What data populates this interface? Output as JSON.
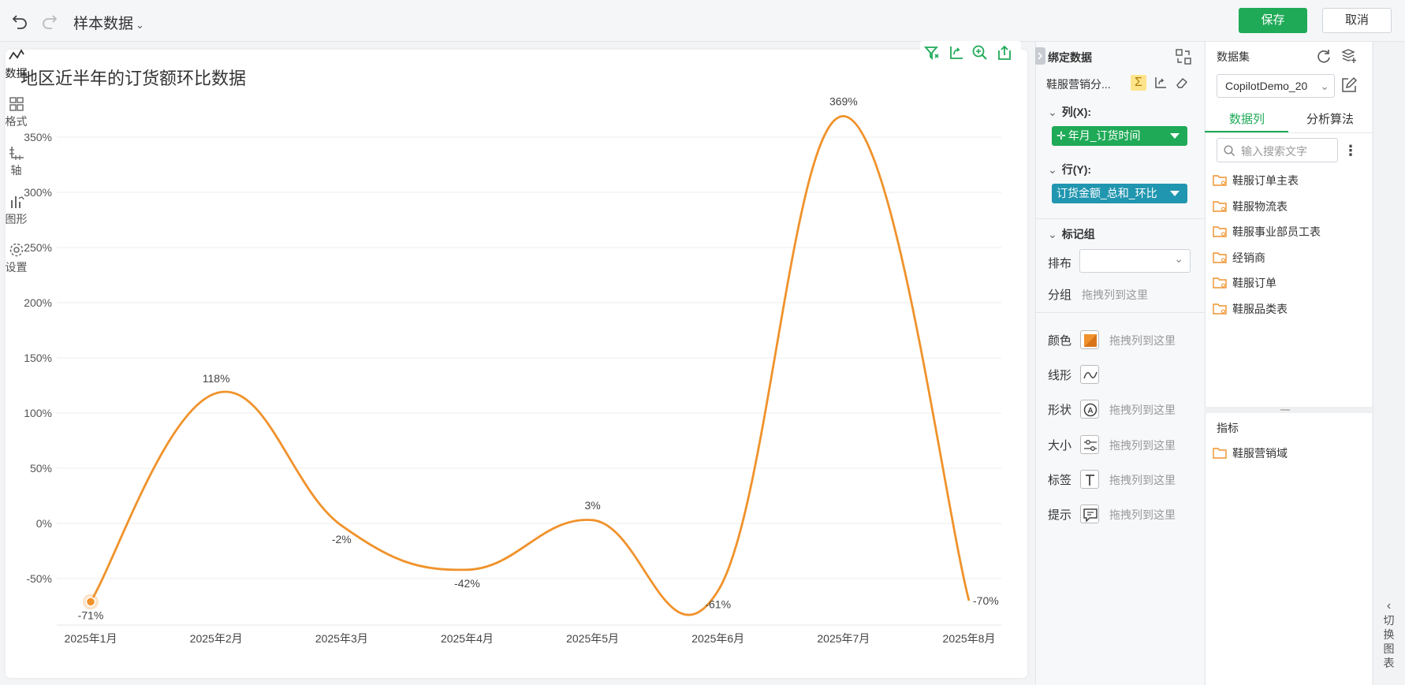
{
  "toolbar": {
    "undo_icon": "undo-icon",
    "redo_icon": "redo-icon",
    "dataset_name": "样本数据",
    "save_label": "保存",
    "cancel_label": "取消"
  },
  "chart_tools": [
    "filter-icon",
    "swap-axes-icon",
    "zoom-icon",
    "export-icon"
  ],
  "chart_data": {
    "type": "line",
    "title": "地区近半年的订货额环比数据",
    "categories": [
      "2025年1月",
      "2025年2月",
      "2025年3月",
      "2025年4月",
      "2025年5月",
      "2025年6月",
      "2025年7月",
      "2025年8月"
    ],
    "series": [
      {
        "values": [
          -71,
          118,
          -2,
          -42,
          3,
          -61,
          369,
          -70
        ],
        "labels": [
          "-71%",
          "118%",
          "-2%",
          "-42%",
          "3%",
          "-61%",
          "369%",
          "-70%"
        ],
        "color": "#f0922b"
      }
    ],
    "yticks": [
      -50,
      0,
      50,
      100,
      150,
      200,
      250,
      300,
      350
    ],
    "ytick_labels": [
      "-50%",
      "0%",
      "50%",
      "100%",
      "150%",
      "200%",
      "250%",
      "300%",
      "350%"
    ],
    "ylim": [
      -90,
      380
    ],
    "grid": true,
    "smooth": true,
    "highlighted_point_index": 0
  },
  "binding": {
    "header": "绑定数据",
    "dataset": "鞋服营销分...",
    "columns_label": "列(X):",
    "column_field": "年月_订货时间",
    "column_color": "#1faa57",
    "rows_label": "行(Y):",
    "row_field": "订货金额_总和_环比",
    "row_color": "#2196b0",
    "marks_label": "标记组",
    "layout_label": "排布",
    "layout_value": "",
    "group_label": "分组",
    "drop_hint": "拖拽列到这里",
    "marks": [
      {
        "label": "颜色",
        "icon": "color-swatch-icon",
        "hint": "拖拽列到这里"
      },
      {
        "label": "线形",
        "icon": "line-shape-icon",
        "hint": ""
      },
      {
        "label": "形状",
        "icon": "shape-icon",
        "hint": "拖拽列到这里"
      },
      {
        "label": "大小",
        "icon": "size-icon",
        "hint": "拖拽列到这里"
      },
      {
        "label": "标签",
        "icon": "label-icon",
        "hint": "拖拽列到这里"
      },
      {
        "label": "提示",
        "icon": "tooltip-icon",
        "hint": "拖拽列到这里"
      }
    ]
  },
  "datasets_panel": {
    "header": "数据集",
    "selected_dataset": "CopilotDemo_20",
    "tabs": [
      "数据列",
      "分析算法"
    ],
    "active_tab": 0,
    "search_placeholder": "输入搜索文字",
    "items": [
      "鞋服订单主表",
      "鞋服物流表",
      "鞋服事业部员工表",
      "经销商",
      "鞋服订单",
      "鞋服品类表"
    ],
    "metrics_header": "指标",
    "metrics": [
      "鞋服营销域"
    ]
  },
  "rail": {
    "items": [
      {
        "label": "数据",
        "icon": "data-icon",
        "active": true
      },
      {
        "label": "格式",
        "icon": "format-icon",
        "active": false
      },
      {
        "label": "轴",
        "icon": "axis-icon",
        "active": false
      },
      {
        "label": "图形",
        "icon": "graph-icon",
        "active": false
      },
      {
        "label": "设置",
        "icon": "settings-icon",
        "active": false
      }
    ],
    "switch_label": "切换图表"
  },
  "colors": {
    "accent": "#1faa57",
    "line": "#f0922b",
    "folder": "#f0922b"
  }
}
